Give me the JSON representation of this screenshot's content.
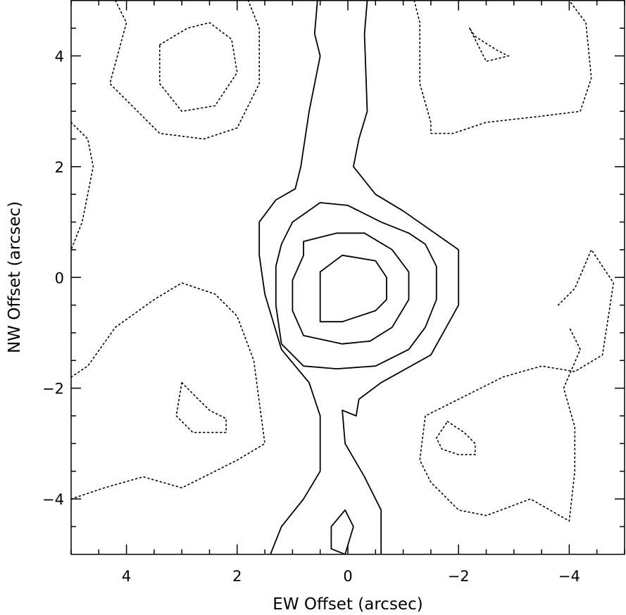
{
  "chart_data": {
    "type": "contour",
    "xlabel": "EW Offset (arcsec)",
    "ylabel": "NW Offset (arcsec)",
    "xlim": [
      5,
      -5
    ],
    "ylim": [
      -5,
      5
    ],
    "x_axis_reversed": true,
    "x_ticks": [
      4,
      2,
      0,
      -2,
      -4
    ],
    "x_tick_labels": [
      "4",
      "2",
      "0",
      "−2",
      "−4"
    ],
    "y_ticks": [
      4,
      2,
      0,
      -2,
      -4
    ],
    "y_tick_labels": [
      "4",
      "2",
      "0",
      "−2",
      "−4"
    ],
    "grid": false,
    "legend": "none",
    "contours": [
      {
        "style": "solid",
        "closed": true,
        "points": [
          [
            0.5,
            -0.8
          ],
          [
            0.1,
            -0.8
          ],
          [
            -0.5,
            -0.6
          ],
          [
            -0.7,
            -0.4
          ],
          [
            -0.7,
            0
          ],
          [
            -0.5,
            0.3
          ],
          [
            0.1,
            0.4
          ],
          [
            0.5,
            0.1
          ],
          [
            0.5,
            -0.4
          ]
        ]
      },
      {
        "style": "solid",
        "closed": true,
        "points": [
          [
            0.8,
            0.65
          ],
          [
            0.2,
            0.8
          ],
          [
            -0.3,
            0.8
          ],
          [
            -0.8,
            0.5
          ],
          [
            -1.1,
            0.1
          ],
          [
            -1.1,
            -0.4
          ],
          [
            -0.8,
            -0.9
          ],
          [
            -0.4,
            -1.15
          ],
          [
            0.1,
            -1.2
          ],
          [
            0.8,
            -1.05
          ],
          [
            1.0,
            -0.6
          ],
          [
            1.0,
            -0.05
          ],
          [
            0.8,
            0.4
          ]
        ]
      },
      {
        "style": "solid",
        "closed": true,
        "points": [
          [
            1.0,
            1.0
          ],
          [
            0.5,
            1.35
          ],
          [
            0,
            1.3
          ],
          [
            -0.6,
            1.0
          ],
          [
            -1.1,
            0.8
          ],
          [
            -1.4,
            0.6
          ],
          [
            -1.6,
            0.2
          ],
          [
            -1.6,
            -0.4
          ],
          [
            -1.4,
            -0.9
          ],
          [
            -1.1,
            -1.3
          ],
          [
            -0.5,
            -1.6
          ],
          [
            0.2,
            -1.65
          ],
          [
            0.8,
            -1.6
          ],
          [
            1.2,
            -1.2
          ],
          [
            1.3,
            -0.5
          ],
          [
            1.3,
            0.2
          ],
          [
            1.2,
            0.6
          ]
        ]
      },
      {
        "style": "solid",
        "closed": false,
        "points": [
          [
            0.55,
            5.0
          ],
          [
            0.6,
            4.4
          ],
          [
            0.5,
            4.0
          ],
          [
            0.7,
            3.0
          ],
          [
            0.85,
            2.0
          ],
          [
            0.95,
            1.6
          ],
          [
            1.3,
            1.4
          ],
          [
            1.6,
            1.0
          ],
          [
            1.6,
            0.4
          ],
          [
            1.5,
            -0.3
          ],
          [
            1.2,
            -1.3
          ],
          [
            0.7,
            -1.9
          ],
          [
            0.5,
            -2.5
          ],
          [
            0.5,
            -3.5
          ],
          [
            0.8,
            -4.0
          ],
          [
            1.2,
            -4.5
          ],
          [
            1.4,
            -5.0
          ]
        ]
      },
      {
        "style": "solid",
        "closed": false,
        "points": [
          [
            -0.35,
            5.0
          ],
          [
            -0.3,
            4.4
          ],
          [
            -0.35,
            3.0
          ],
          [
            -0.2,
            2.5
          ],
          [
            -0.1,
            2.0
          ],
          [
            -0.5,
            1.5
          ],
          [
            -1.0,
            1.2
          ],
          [
            -2.0,
            0.5
          ],
          [
            -2.0,
            -0.5
          ],
          [
            -1.5,
            -1.4
          ],
          [
            -0.6,
            -1.9
          ],
          [
            -0.2,
            -2.2
          ],
          [
            -0.15,
            -2.5
          ],
          [
            0.1,
            -2.4
          ],
          [
            0.05,
            -3.0
          ],
          [
            -0.3,
            -3.6
          ],
          [
            -0.6,
            -4.2
          ],
          [
            -0.6,
            -5.0
          ]
        ]
      },
      {
        "style": "solid",
        "closed": true,
        "points": [
          [
            0.3,
            -4.5
          ],
          [
            0.05,
            -4.2
          ],
          [
            -0.1,
            -4.5
          ],
          [
            0.05,
            -5.0
          ],
          [
            0.3,
            -4.9
          ]
        ]
      },
      {
        "style": "dotted",
        "closed": true,
        "points": [
          [
            3.4,
            4.2
          ],
          [
            2.9,
            4.5
          ],
          [
            2.5,
            4.6
          ],
          [
            2.1,
            4.3
          ],
          [
            2.0,
            3.7
          ],
          [
            2.4,
            3.1
          ],
          [
            3.0,
            3.0
          ],
          [
            3.4,
            3.5
          ],
          [
            3.4,
            3.9
          ]
        ]
      },
      {
        "style": "dotted",
        "closed": false,
        "points": [
          [
            4.2,
            5.0
          ],
          [
            4.0,
            4.6
          ],
          [
            4.3,
            3.5
          ],
          [
            3.4,
            2.6
          ],
          [
            2.6,
            2.5
          ],
          [
            2.0,
            2.7
          ],
          [
            1.6,
            3.5
          ],
          [
            1.6,
            4.5
          ],
          [
            1.8,
            5.0
          ]
        ]
      },
      {
        "style": "dotted",
        "closed": true,
        "points": [
          [
            -2.2,
            4.5
          ],
          [
            -2.5,
            3.9
          ],
          [
            -2.9,
            4.0
          ],
          [
            -2.7,
            4.1
          ],
          [
            -2.3,
            4.35
          ]
        ]
      },
      {
        "style": "dotted",
        "closed": false,
        "points": [
          [
            -1.2,
            5.0
          ],
          [
            -1.3,
            4.6
          ],
          [
            -1.3,
            3.5
          ],
          [
            -1.5,
            2.8
          ],
          [
            -1.5,
            2.6
          ],
          [
            -1.9,
            2.6
          ],
          [
            -2.5,
            2.8
          ],
          [
            -3.4,
            2.9
          ],
          [
            -4.2,
            3.0
          ],
          [
            -4.4,
            3.6
          ],
          [
            -4.3,
            4.6
          ],
          [
            -4.0,
            5.0
          ]
        ]
      },
      {
        "style": "dotted",
        "closed": false,
        "points": [
          [
            5.0,
            2.8
          ],
          [
            4.7,
            2.5
          ],
          [
            4.6,
            2.0
          ],
          [
            4.8,
            1.0
          ],
          [
            5.0,
            0.5
          ]
        ]
      },
      {
        "style": "dotted",
        "closed": false,
        "points": [
          [
            5.0,
            -1.8
          ],
          [
            4.7,
            -1.6
          ],
          [
            4.2,
            -0.9
          ],
          [
            3.5,
            -0.4
          ],
          [
            3.0,
            -0.1
          ],
          [
            2.4,
            -0.3
          ],
          [
            2.0,
            -0.7
          ],
          [
            1.7,
            -1.5
          ],
          [
            1.5,
            -3.0
          ],
          [
            2.0,
            -3.3
          ],
          [
            3.0,
            -3.8
          ],
          [
            3.7,
            -3.6
          ],
          [
            4.4,
            -3.8
          ],
          [
            5.0,
            -4.0
          ]
        ]
      },
      {
        "style": "dotted",
        "closed": true,
        "points": [
          [
            3.0,
            -1.9
          ],
          [
            2.5,
            -2.4
          ],
          [
            2.2,
            -2.55
          ],
          [
            2.2,
            -2.8
          ],
          [
            2.8,
            -2.8
          ],
          [
            3.1,
            -2.5
          ]
        ]
      },
      {
        "style": "dotted",
        "closed": true,
        "points": [
          [
            -1.8,
            -2.6
          ],
          [
            -2.1,
            -2.8
          ],
          [
            -2.3,
            -3.0
          ],
          [
            -2.3,
            -3.2
          ],
          [
            -2.0,
            -3.2
          ],
          [
            -1.7,
            -3.1
          ],
          [
            -1.6,
            -2.9
          ]
        ]
      },
      {
        "style": "dotted",
        "closed": false,
        "points": [
          [
            -3.8,
            -0.5
          ],
          [
            -4.1,
            -0.2
          ],
          [
            -4.4,
            0.5
          ],
          [
            -4.8,
            -0.1
          ],
          [
            -4.6,
            -1.4
          ],
          [
            -4.1,
            -1.7
          ],
          [
            -3.5,
            -1.6
          ],
          [
            -2.8,
            -1.8
          ],
          [
            -2.0,
            -2.2
          ],
          [
            -1.4,
            -2.5
          ],
          [
            -1.3,
            -3.3
          ],
          [
            -1.5,
            -3.7
          ],
          [
            -2.0,
            -4.2
          ],
          [
            -2.5,
            -4.3
          ],
          [
            -3.3,
            -4.0
          ],
          [
            -4.0,
            -4.4
          ],
          [
            -4.1,
            -3.5
          ],
          [
            -4.1,
            -2.7
          ],
          [
            -3.9,
            -2.0
          ],
          [
            -4.2,
            -1.3
          ],
          [
            -4.0,
            -0.9
          ]
        ]
      }
    ]
  }
}
